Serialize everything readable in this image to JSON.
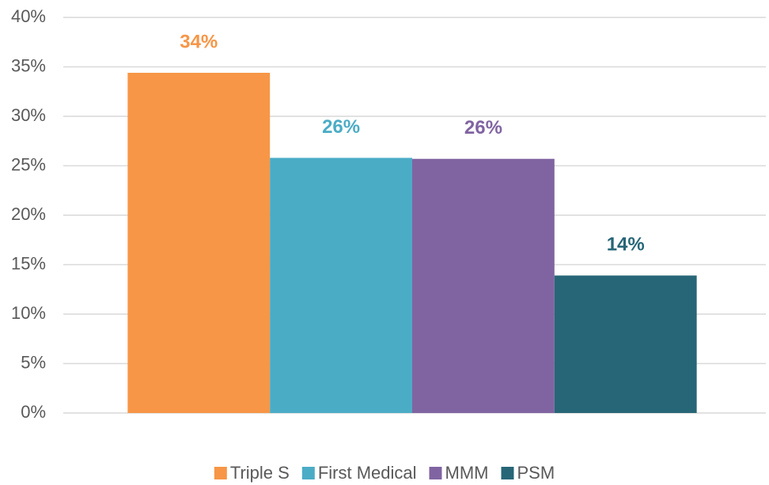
{
  "chart_data": {
    "type": "bar",
    "categories": [
      null
    ],
    "series": [
      {
        "name": "Triple S",
        "color": "#f79646",
        "values": [
          34.4
        ],
        "value_labels": [
          "34%"
        ]
      },
      {
        "name": "First Medical",
        "color": "#4bacc6",
        "values": [
          25.8
        ],
        "value_labels": [
          "26%"
        ]
      },
      {
        "name": "MMM",
        "color": "#8064a2",
        "values": [
          25.7
        ],
        "value_labels": [
          "26%"
        ]
      },
      {
        "name": "PSM",
        "color": "#276677",
        "values": [
          13.9
        ],
        "value_labels": [
          "14%"
        ]
      }
    ],
    "ylim": [
      0,
      40
    ],
    "yticks": [
      {
        "value": 0,
        "label": "0%"
      },
      {
        "value": 5,
        "label": "5%"
      },
      {
        "value": 10,
        "label": "10%"
      },
      {
        "value": 15,
        "label": "15%"
      },
      {
        "value": 20,
        "label": "20%"
      },
      {
        "value": 25,
        "label": "25%"
      },
      {
        "value": 30,
        "label": "30%"
      },
      {
        "value": 35,
        "label": "35%"
      },
      {
        "value": 40,
        "label": "40%"
      }
    ],
    "grid": true,
    "legend": "bottom"
  }
}
